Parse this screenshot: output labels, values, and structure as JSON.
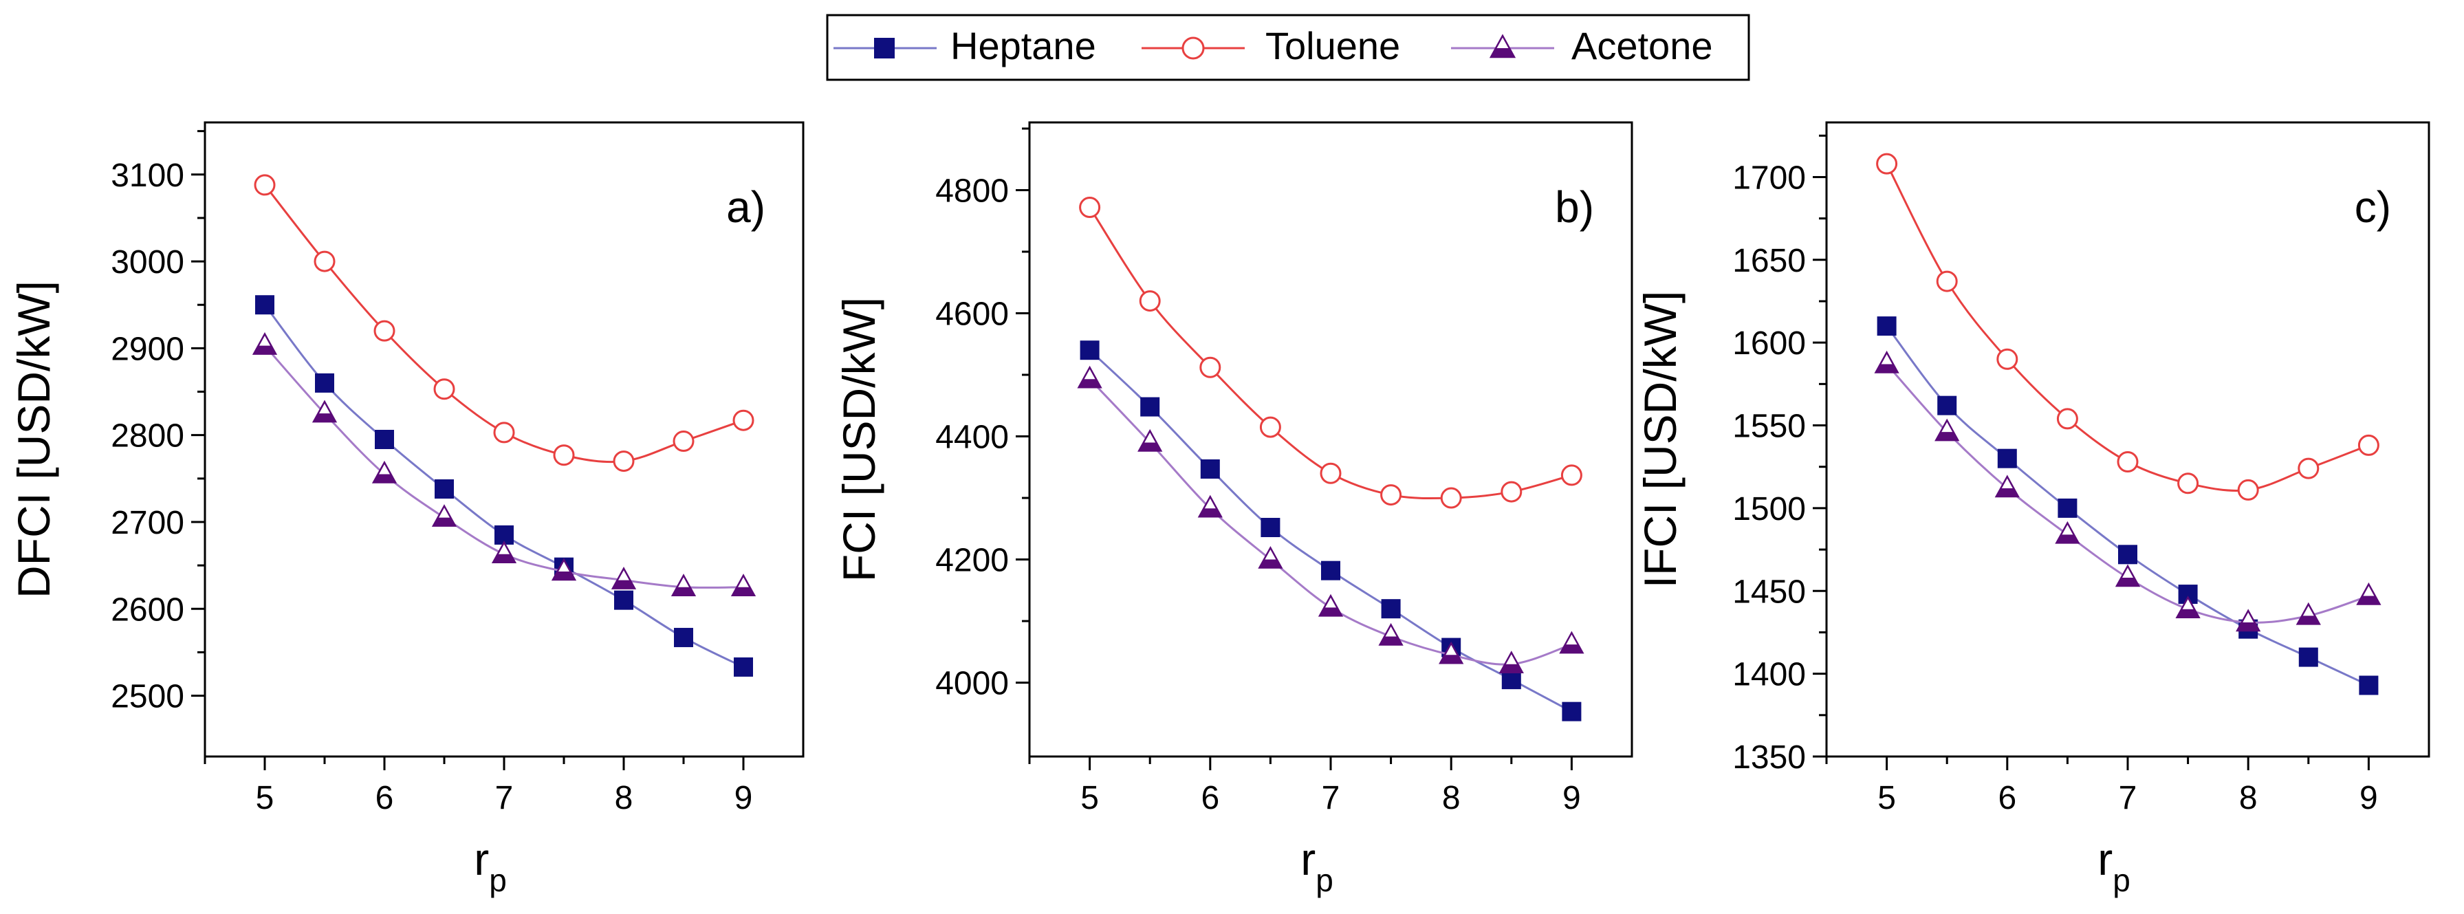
{
  "colors": {
    "heptane_marker": "#0e0e7e",
    "heptane_line": "#7878c8",
    "toluene": "#e84040",
    "acetone_marker": "#5a0a78",
    "acetone_line": "#a57ac8"
  },
  "legend": {
    "placement": "top-center",
    "items": [
      {
        "label": "Heptane",
        "marker": "filled-square"
      },
      {
        "label": "Toluene",
        "marker": "open-circle"
      },
      {
        "label": "Acetone",
        "marker": "half-filled-triangle"
      }
    ]
  },
  "chart_data": [
    {
      "type": "line",
      "panel_label": "a)",
      "xlabel": "r",
      "xlabel_sub": "p",
      "ylabel": "DFCI [USD/kW]",
      "xlim": [
        4.5,
        9.5
      ],
      "ylim": [
        2430,
        3160
      ],
      "xticks": [
        "5",
        "6",
        "7",
        "8",
        "9"
      ],
      "yticks": [
        "2500",
        "2600",
        "2700",
        "2800",
        "2900",
        "3000",
        "3100"
      ],
      "x": [
        5,
        5.5,
        6,
        6.5,
        7,
        7.5,
        8,
        8.5,
        9
      ],
      "series": [
        {
          "name": "Heptane",
          "values": [
            2950,
            2860,
            2795,
            2738,
            2685,
            2648,
            2610,
            2567,
            2533
          ]
        },
        {
          "name": "Toluene",
          "values": [
            3088,
            3000,
            2920,
            2853,
            2803,
            2777,
            2770,
            2793,
            2817
          ]
        },
        {
          "name": "Acetone",
          "values": [
            2903,
            2825,
            2755,
            2705,
            2663,
            2643,
            2633,
            2625,
            2625
          ]
        }
      ]
    },
    {
      "type": "line",
      "panel_label": "b)",
      "xlabel": "r",
      "xlabel_sub": "p",
      "ylabel": "FCI [USD/kW]",
      "xlim": [
        4.5,
        9.5
      ],
      "ylim": [
        3880,
        4910
      ],
      "xticks": [
        "5",
        "6",
        "7",
        "8",
        "9"
      ],
      "yticks": [
        "4000",
        "4200",
        "4400",
        "4600",
        "4800"
      ],
      "x": [
        5,
        5.5,
        6,
        6.5,
        7,
        7.5,
        8,
        8.5,
        9
      ],
      "series": [
        {
          "name": "Heptane",
          "values": [
            4540,
            4448,
            4347,
            4252,
            4182,
            4120,
            4057,
            4005,
            3953
          ]
        },
        {
          "name": "Toluene",
          "values": [
            4772,
            4620,
            4512,
            4415,
            4340,
            4305,
            4300,
            4310,
            4337
          ]
        },
        {
          "name": "Acetone",
          "values": [
            4493,
            4390,
            4283,
            4200,
            4122,
            4075,
            4045,
            4030,
            4062
          ]
        }
      ]
    },
    {
      "type": "line",
      "panel_label": "c)",
      "xlabel": "r",
      "xlabel_sub": "p",
      "ylabel": "IFCI [USD/kW]",
      "xlim": [
        4.5,
        9.5
      ],
      "ylim": [
        1350,
        1733
      ],
      "xticks": [
        "5",
        "6",
        "7",
        "8",
        "9"
      ],
      "yticks": [
        "1350",
        "1400",
        "1450",
        "1500",
        "1550",
        "1600",
        "1650",
        "1700"
      ],
      "x": [
        5,
        5.5,
        6,
        6.5,
        7,
        7.5,
        8,
        8.5,
        9
      ],
      "series": [
        {
          "name": "Heptane",
          "values": [
            1610,
            1562,
            1530,
            1500,
            1472,
            1448,
            1427,
            1410,
            1393
          ]
        },
        {
          "name": "Toluene",
          "values": [
            1708,
            1637,
            1590,
            1554,
            1528,
            1515,
            1511,
            1524,
            1538
          ]
        },
        {
          "name": "Acetone",
          "values": [
            1587,
            1546,
            1512,
            1484,
            1458,
            1439,
            1431,
            1435,
            1447
          ]
        }
      ]
    }
  ]
}
